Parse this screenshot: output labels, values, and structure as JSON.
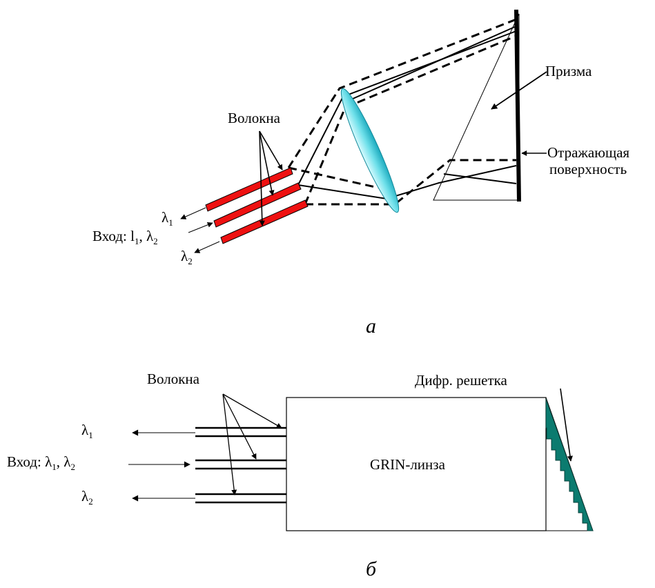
{
  "diagram_a": {
    "fibers_label": "Волокна",
    "prism_label": "Призма",
    "reflect_label_1": "Отражающая",
    "reflect_label_2": "поверхность",
    "out1_symbol": "λ",
    "out1_sub": "1",
    "input_prefix": "Вход: l",
    "input_sub1": "1",
    "input_mid": ", λ",
    "input_sub2": "2",
    "out2_symbol": "λ",
    "out2_sub": "2",
    "caption": "а",
    "colors": {
      "fiber": "#ee1111",
      "lens": "#66dde8"
    }
  },
  "diagram_b": {
    "fibers_label": "Волокна",
    "grating_label": "Дифр. решетка",
    "lens_label": "GRIN-линза",
    "out1_symbol": "λ",
    "out1_sub": "1",
    "input_prefix": "Вход: λ",
    "input_sub1": "1",
    "input_mid": ", λ",
    "input_sub2": "2",
    "out2_symbol": "λ",
    "out2_sub": "2",
    "caption": "б",
    "colors": {
      "grating": "#0b7b6f"
    }
  }
}
